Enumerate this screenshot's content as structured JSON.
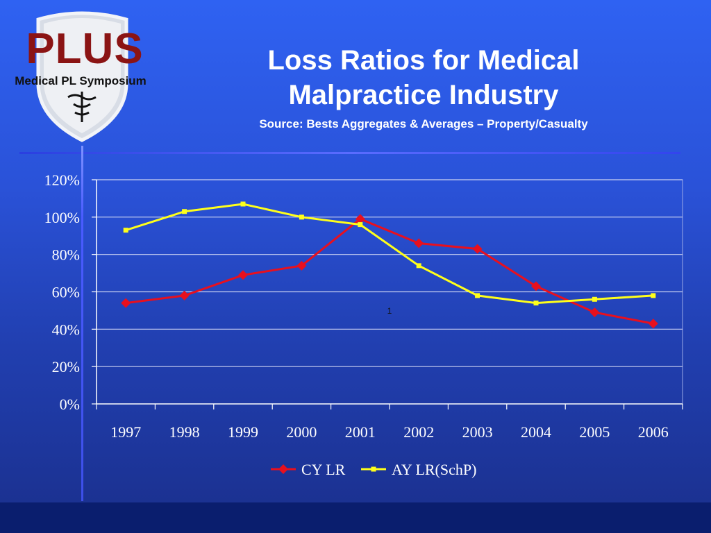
{
  "logo": {
    "name": "PLUS",
    "tagline": "Medical PL Symposium"
  },
  "slide": {
    "title_line1": "Loss Ratios for Medical",
    "title_line2": "Malpractice Industry",
    "subtitle": "Source:  Bests Aggregates & Averages – Property/Casualty"
  },
  "chart_data": {
    "type": "line",
    "title": "",
    "xlabel": "",
    "ylabel": "",
    "categories": [
      "1997",
      "1998",
      "1999",
      "2000",
      "2001",
      "2002",
      "2003",
      "2004",
      "2005",
      "2006"
    ],
    "ylim": [
      0,
      120
    ],
    "yticks": [
      0,
      20,
      40,
      60,
      80,
      100,
      120
    ],
    "ytick_labels": [
      "0%",
      "20%",
      "40%",
      "60%",
      "80%",
      "100%",
      "120%"
    ],
    "grid": true,
    "legend_position": "bottom",
    "annotation": "1",
    "series": [
      {
        "name": "CY LR",
        "color": "#e8101e",
        "marker": "diamond",
        "values": [
          54,
          58,
          69,
          74,
          99,
          86,
          83,
          63,
          49,
          43
        ]
      },
      {
        "name": "AY LR(SchP)",
        "color": "#ffff1a",
        "marker": "square",
        "values": [
          93,
          103,
          107,
          100,
          96,
          74,
          58,
          54,
          56,
          58
        ]
      }
    ]
  }
}
